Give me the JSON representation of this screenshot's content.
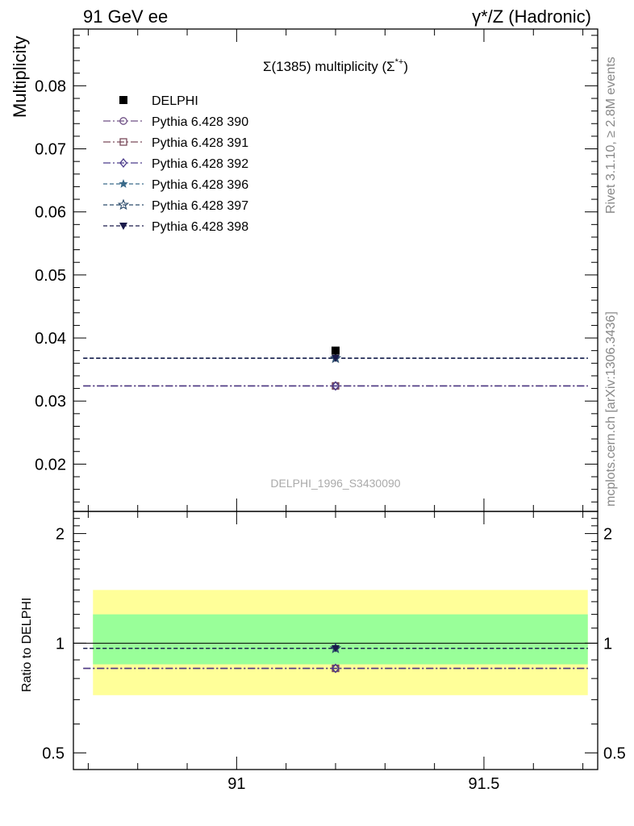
{
  "header": {
    "left": "91 GeV ee",
    "right": "γ*/Z (Hadronic)"
  },
  "side_labels": {
    "rivet": "Rivet 3.1.10, ≥ 2.8M events",
    "mcplots": "mcplots.cern.ch [arXiv:1306.3436]"
  },
  "chart_data": [
    {
      "type": "scatter",
      "title": "Σ(1385) multiplicity (Σ*+)",
      "title_main": "Σ(1385) multiplicity (Σ",
      "title_sup": "*+",
      "title_end": ")",
      "ylabel": "Multiplicity",
      "watermark": "DELPHI_1996_S3430090",
      "xlim": [
        90.67,
        91.73
      ],
      "ylim": [
        0.0125,
        0.089
      ],
      "yticks": [
        0.02,
        0.03,
        0.04,
        0.05,
        0.06,
        0.07,
        0.08
      ],
      "ytick_labels": [
        "0.02",
        "0.03",
        "0.04",
        "0.05",
        "0.06",
        "0.07",
        "0.08"
      ],
      "legend_position": "top-left",
      "data_series": {
        "name": "DELPHI",
        "x": 91.2,
        "y": 0.038,
        "marker": "filled-square",
        "color": "#000000"
      },
      "series": [
        {
          "name": "Pythia 6.428 390",
          "value": 0.0324,
          "color": "#6e4f84",
          "dash": "dashdot",
          "marker": "open-circle"
        },
        {
          "name": "Pythia 6.428 391",
          "value": 0.0324,
          "color": "#7a4a5a",
          "dash": "dashdot",
          "marker": "open-square"
        },
        {
          "name": "Pythia 6.428 392",
          "value": 0.0324,
          "color": "#4a3a8a",
          "dash": "dashdot",
          "marker": "open-diamond"
        },
        {
          "name": "Pythia 6.428 396",
          "value": 0.0368,
          "color": "#3a6a8a",
          "dash": "dashed",
          "marker": "filled-star"
        },
        {
          "name": "Pythia 6.428 397",
          "value": 0.0368,
          "color": "#2a4a6a",
          "dash": "dashed",
          "marker": "open-star"
        },
        {
          "name": "Pythia 6.428 398",
          "value": 0.0368,
          "color": "#1a1a4a",
          "dash": "dashed",
          "marker": "filled-triangle-down"
        }
      ]
    },
    {
      "type": "scatter",
      "ylabel": "Ratio to DELPHI",
      "xlim": [
        90.67,
        91.73
      ],
      "ylim": [
        0.45,
        2.3
      ],
      "ylog": true,
      "yticks": [
        0.5,
        1,
        2
      ],
      "ytick_labels": [
        "0.5",
        "1",
        "2"
      ],
      "xticks": [
        91,
        91.5
      ],
      "xtick_labels": [
        "91",
        "91.5"
      ],
      "bands": [
        {
          "name": "total uncertainty",
          "low": 0.72,
          "high": 1.4,
          "color": "#ffff99"
        },
        {
          "name": "statistical uncertainty",
          "low": 0.875,
          "high": 1.2,
          "color": "#99ff99"
        }
      ],
      "reference_line": 1.0,
      "series": [
        {
          "name": "Pythia 6.428 390",
          "value": 0.853
        },
        {
          "name": "Pythia 6.428 391",
          "value": 0.853
        },
        {
          "name": "Pythia 6.428 392",
          "value": 0.853
        },
        {
          "name": "Pythia 6.428 396",
          "value": 0.968
        },
        {
          "name": "Pythia 6.428 397",
          "value": 0.968
        },
        {
          "name": "Pythia 6.428 398",
          "value": 0.968
        }
      ]
    }
  ]
}
